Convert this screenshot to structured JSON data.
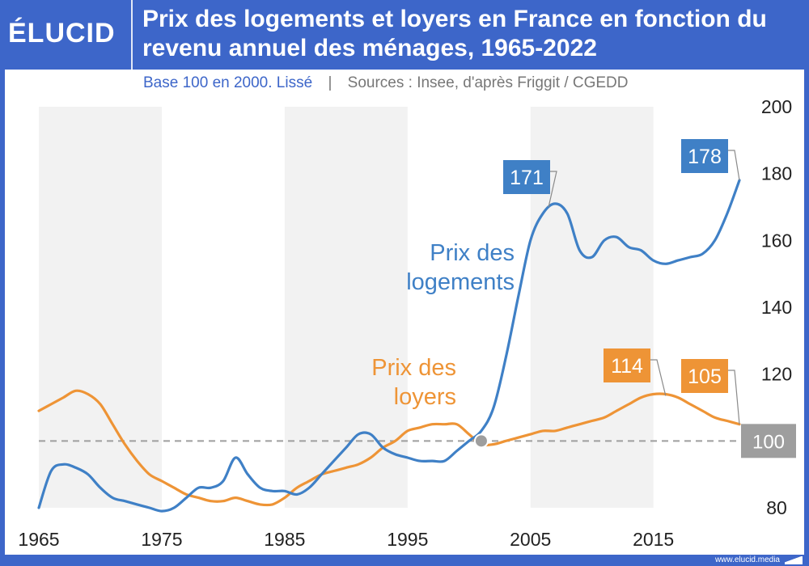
{
  "brand": {
    "logo_text": "ÉLUCID",
    "footer_url": "www.elucid.media"
  },
  "colors": {
    "brand_blue": "#3d66c9",
    "housing_blue": "#3f80c6",
    "rent_orange": "#ee9436",
    "reference_gray": "#9e9e9e",
    "band_gray": "#f2f2f2"
  },
  "chart_data": {
    "type": "line",
    "title": "Prix des logements et loyers en France en fonction du revenu annuel des ménages, 1965-2022",
    "subtitle": "Base 100 en 2000. Lissé",
    "subtitle_separator": "|",
    "source": "Sources : Insee, d'après Friggit / CGEDD",
    "x_ticks": [
      "1965",
      "1975",
      "1985",
      "1995",
      "2005",
      "2015"
    ],
    "xlim": [
      1965,
      2022
    ],
    "y_ticks": [
      "80",
      "100",
      "120",
      "140",
      "160",
      "180",
      "200"
    ],
    "ylim": [
      80,
      200
    ],
    "grid": false,
    "alternating_decade_bands": true,
    "series": [
      {
        "name": "Prix des logements",
        "label_lines": [
          "Prix des",
          "logements"
        ],
        "color": "#3f80c6",
        "x": [
          1965,
          1966,
          1967,
          1968,
          1969,
          1970,
          1971,
          1972,
          1973,
          1974,
          1975,
          1976,
          1977,
          1978,
          1979,
          1980,
          1981,
          1982,
          1983,
          1984,
          1985,
          1986,
          1987,
          1988,
          1989,
          1990,
          1991,
          1992,
          1993,
          1994,
          1995,
          1996,
          1997,
          1998,
          1999,
          2000,
          2001,
          2002,
          2003,
          2004,
          2005,
          2006,
          2007,
          2008,
          2009,
          2010,
          2011,
          2012,
          2013,
          2014,
          2015,
          2016,
          2017,
          2018,
          2019,
          2020,
          2021,
          2022
        ],
        "values": [
          80,
          91,
          93,
          92,
          90,
          86,
          83,
          82,
          81,
          80,
          79,
          80,
          83,
          86,
          86,
          88,
          95,
          90,
          86,
          85,
          85,
          84,
          86,
          90,
          94,
          98,
          102,
          102,
          98,
          96,
          95,
          94,
          94,
          94,
          97,
          100,
          103,
          110,
          125,
          143,
          160,
          168,
          171,
          168,
          157,
          155,
          160,
          161,
          158,
          157,
          154,
          153,
          154,
          155,
          156,
          160,
          168,
          178
        ],
        "end_label": "178",
        "peak_label": "171",
        "peak_x": 2007
      },
      {
        "name": "Prix des loyers",
        "label_lines": [
          "Prix des",
          "loyers"
        ],
        "color": "#ee9436",
        "x": [
          1965,
          1966,
          1967,
          1968,
          1969,
          1970,
          1971,
          1972,
          1973,
          1974,
          1975,
          1976,
          1977,
          1978,
          1979,
          1980,
          1981,
          1982,
          1983,
          1984,
          1985,
          1986,
          1987,
          1988,
          1989,
          1990,
          1991,
          1992,
          1993,
          1994,
          1995,
          1996,
          1997,
          1998,
          1999,
          2000,
          2001,
          2002,
          2003,
          2004,
          2005,
          2006,
          2007,
          2008,
          2009,
          2010,
          2011,
          2012,
          2013,
          2014,
          2015,
          2016,
          2017,
          2018,
          2019,
          2020,
          2021,
          2022
        ],
        "values": [
          109,
          111,
          113,
          115,
          114,
          111,
          105,
          99,
          94,
          90,
          88,
          86,
          84,
          83,
          82,
          82,
          83,
          82,
          81,
          81,
          83,
          86,
          88,
          90,
          91,
          92,
          93,
          95,
          98,
          100,
          103,
          104,
          105,
          105,
          105,
          102,
          99,
          99,
          100,
          101,
          102,
          103,
          103,
          104,
          105,
          106,
          107,
          109,
          111,
          113,
          114,
          114,
          113,
          111,
          109,
          107,
          106,
          105
        ],
        "end_label": "105",
        "peak_label": "114",
        "peak_x": 2016
      }
    ],
    "reference_line": {
      "value": 100,
      "label": "100",
      "intersection_x": 2001
    }
  }
}
